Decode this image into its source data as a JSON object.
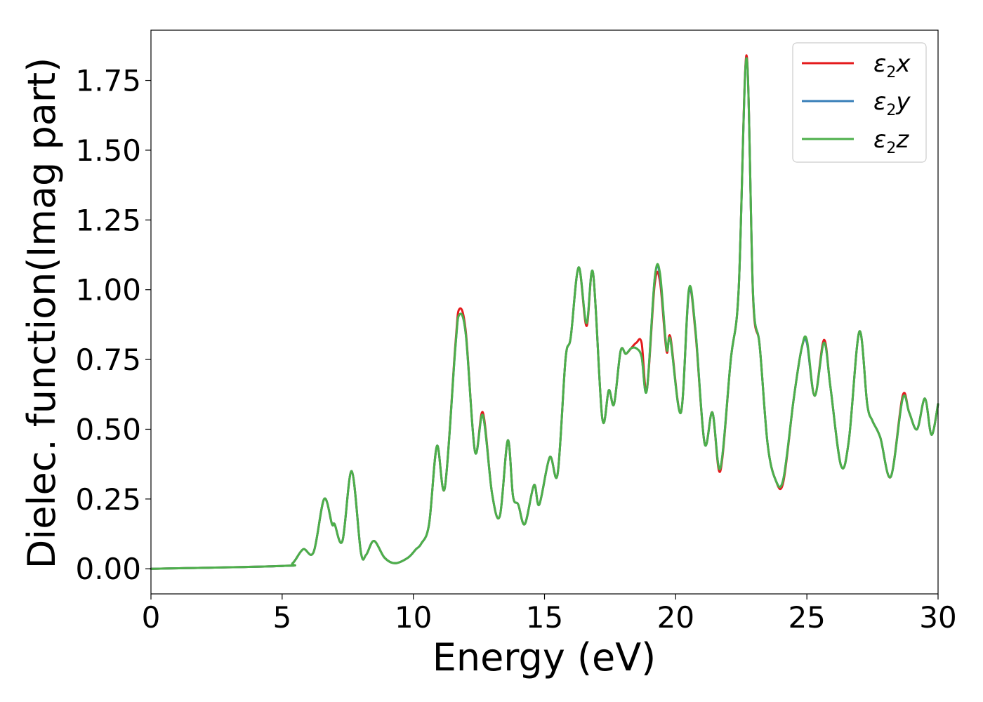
{
  "chart_data": {
    "type": "line",
    "xlabel": "Energy (eV)",
    "ylabel": "Dielec. function(Imag part)",
    "xlim": [
      0,
      30
    ],
    "ylim": [
      -0.09,
      1.93
    ],
    "xticks": [
      "0",
      "5",
      "10",
      "15",
      "20",
      "25",
      "30"
    ],
    "yticks": [
      "0.00",
      "0.25",
      "0.50",
      "0.75",
      "1.00",
      "1.25",
      "1.50",
      "1.75"
    ],
    "grid": false,
    "legend_position": "top-right",
    "x": [
      0,
      5,
      5.4,
      5.8,
      6.2,
      6.6,
      6.9,
      7.0,
      7.3,
      7.65,
      8.0,
      8.2,
      8.5,
      8.9,
      9.3,
      9.8,
      10.1,
      10.3,
      10.6,
      10.9,
      11.2,
      11.6,
      11.75,
      12.0,
      12.35,
      12.65,
      13.0,
      13.3,
      13.6,
      13.8,
      14.0,
      14.25,
      14.6,
      14.8,
      15.2,
      15.5,
      15.8,
      16.0,
      16.3,
      16.6,
      16.85,
      17.2,
      17.45,
      17.65,
      17.9,
      18.1,
      18.3,
      18.5,
      18.7,
      18.9,
      19.2,
      19.4,
      19.65,
      19.8,
      20.2,
      20.5,
      20.75,
      21.1,
      21.4,
      21.7,
      22.1,
      22.4,
      22.7,
      22.95,
      23.2,
      23.5,
      23.8,
      24.1,
      24.5,
      24.8,
      25.0,
      25.3,
      25.65,
      25.9,
      26.3,
      26.6,
      27.0,
      27.3,
      27.5,
      27.8,
      28.2,
      28.65,
      28.9,
      29.2,
      29.5,
      29.75,
      30.0
    ],
    "series": [
      {
        "name": "ε₂x",
        "color": "#e41a1c",
        "values": [
          0.0,
          0.01,
          0.02,
          0.07,
          0.06,
          0.25,
          0.16,
          0.16,
          0.1,
          0.35,
          0.06,
          0.05,
          0.1,
          0.04,
          0.02,
          0.04,
          0.07,
          0.09,
          0.16,
          0.44,
          0.29,
          0.8,
          0.93,
          0.85,
          0.42,
          0.56,
          0.27,
          0.19,
          0.46,
          0.26,
          0.23,
          0.16,
          0.3,
          0.23,
          0.4,
          0.34,
          0.75,
          0.83,
          1.08,
          0.87,
          1.06,
          0.54,
          0.64,
          0.59,
          0.78,
          0.77,
          0.79,
          0.81,
          0.81,
          0.64,
          1.02,
          1.03,
          0.78,
          0.83,
          0.56,
          0.99,
          0.85,
          0.45,
          0.56,
          0.35,
          0.75,
          1.0,
          1.84,
          0.97,
          0.8,
          0.45,
          0.32,
          0.31,
          0.61,
          0.79,
          0.81,
          0.62,
          0.82,
          0.65,
          0.37,
          0.46,
          0.85,
          0.59,
          0.53,
          0.47,
          0.33,
          0.62,
          0.56,
          0.5,
          0.61,
          0.48,
          0.59
        ]
      },
      {
        "name": "ε₂y",
        "color": "#377eb8",
        "values": [
          0.0,
          0.01,
          0.02,
          0.07,
          0.06,
          0.25,
          0.16,
          0.16,
          0.1,
          0.35,
          0.06,
          0.05,
          0.1,
          0.04,
          0.02,
          0.04,
          0.07,
          0.09,
          0.16,
          0.44,
          0.29,
          0.79,
          0.91,
          0.84,
          0.42,
          0.55,
          0.27,
          0.19,
          0.46,
          0.26,
          0.23,
          0.16,
          0.3,
          0.23,
          0.4,
          0.34,
          0.75,
          0.83,
          1.08,
          0.88,
          1.06,
          0.54,
          0.64,
          0.59,
          0.78,
          0.77,
          0.79,
          0.79,
          0.76,
          0.64,
          1.04,
          1.05,
          0.79,
          0.82,
          0.56,
          0.99,
          0.86,
          0.45,
          0.56,
          0.36,
          0.75,
          1.0,
          1.83,
          0.98,
          0.8,
          0.45,
          0.32,
          0.32,
          0.61,
          0.79,
          0.81,
          0.62,
          0.81,
          0.65,
          0.37,
          0.46,
          0.85,
          0.59,
          0.53,
          0.47,
          0.33,
          0.61,
          0.56,
          0.5,
          0.61,
          0.48,
          0.59
        ]
      },
      {
        "name": "ε₂z",
        "color": "#4daf4a",
        "values": [
          0.0,
          0.01,
          0.02,
          0.07,
          0.06,
          0.25,
          0.16,
          0.16,
          0.1,
          0.35,
          0.06,
          0.05,
          0.1,
          0.04,
          0.02,
          0.04,
          0.07,
          0.09,
          0.16,
          0.44,
          0.29,
          0.79,
          0.91,
          0.84,
          0.42,
          0.55,
          0.27,
          0.19,
          0.46,
          0.26,
          0.23,
          0.16,
          0.3,
          0.23,
          0.4,
          0.34,
          0.75,
          0.83,
          1.08,
          0.88,
          1.06,
          0.54,
          0.64,
          0.59,
          0.78,
          0.77,
          0.79,
          0.79,
          0.76,
          0.64,
          1.04,
          1.06,
          0.79,
          0.82,
          0.56,
          1.0,
          0.86,
          0.45,
          0.56,
          0.36,
          0.75,
          1.0,
          1.83,
          0.98,
          0.8,
          0.45,
          0.32,
          0.32,
          0.61,
          0.79,
          0.82,
          0.62,
          0.81,
          0.65,
          0.37,
          0.46,
          0.85,
          0.59,
          0.53,
          0.47,
          0.33,
          0.61,
          0.56,
          0.5,
          0.61,
          0.48,
          0.59
        ]
      }
    ]
  }
}
